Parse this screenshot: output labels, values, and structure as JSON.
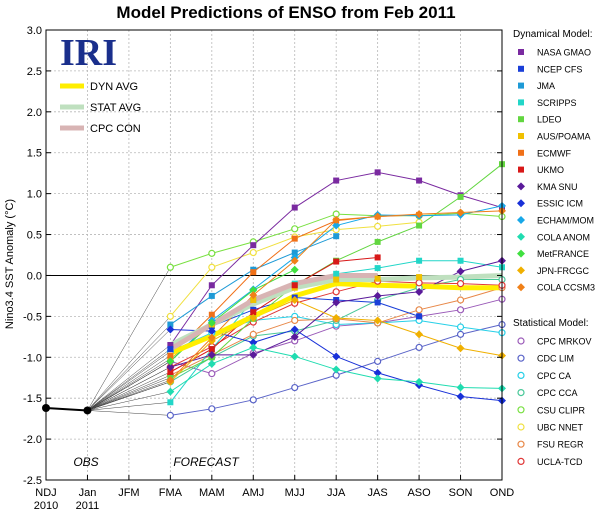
{
  "chart_data": {
    "type": "line",
    "title": "Model Predictions of ENSO from Feb 2011",
    "ylabel": "Nino3.4 SST Anomaly (°C)",
    "ylim": [
      -2.5,
      3.0
    ],
    "yticks": [
      "3.0",
      "2.5",
      "2.0",
      "1.5",
      "1.0",
      "0.5",
      "0.0",
      "-0.5",
      "-1.0",
      "-1.5",
      "-2.0",
      "-2.5"
    ],
    "categories": [
      "NDJ",
      "Jan",
      "JFM",
      "FMA",
      "MAM",
      "AMJ",
      "MJJ",
      "JJA",
      "JAS",
      "ASO",
      "SON",
      "OND"
    ],
    "year_labels": {
      "NDJ": "2010",
      "Jan": "2011"
    },
    "grid": true,
    "logo": "IRI",
    "region_labels": {
      "obs": "OBS",
      "forecast": "FORECAST"
    },
    "observed": {
      "x": [
        "NDJ",
        "Jan"
      ],
      "values": [
        -1.62,
        -1.65
      ]
    },
    "averages": [
      {
        "name": "DYN AVG",
        "color": "#ffee00",
        "values": [
          -0.95,
          -0.74,
          -0.5,
          -0.25,
          -0.1,
          -0.12,
          -0.13,
          -0.15,
          -0.15
        ]
      },
      {
        "name": "STAT AVG",
        "color": "#bfe0bf",
        "values": [
          -0.85,
          -0.6,
          -0.35,
          -0.15,
          -0.05,
          -0.05,
          -0.03,
          -0.02,
          0.0
        ]
      },
      {
        "name": "CPC CON",
        "color": "#d8b4b4",
        "values": [
          -0.9,
          -0.6,
          -0.3,
          -0.1,
          0.0,
          0.0,
          null,
          null,
          null
        ]
      }
    ],
    "legend_dynamical_title": "Dynamical Model:",
    "legend_statistical_title": "Statistical Model:",
    "dynamical": [
      {
        "name": "NASA GMAO",
        "color": "#7a2aa0",
        "marker": "square",
        "values": [
          -0.85,
          -0.12,
          0.37,
          0.83,
          1.16,
          1.26,
          1.16,
          0.98,
          0.83
        ]
      },
      {
        "name": "NCEP CFS",
        "color": "#1a3fd8",
        "marker": "square",
        "values": [
          -0.9,
          -0.62,
          -0.42,
          -0.27,
          -0.3,
          -0.33,
          -0.5,
          null,
          null
        ]
      },
      {
        "name": "JMA",
        "color": "#1e9ad6",
        "marker": "square",
        "values": [
          -0.6,
          -0.25,
          0.07,
          0.28,
          0.48,
          null,
          null,
          null,
          null
        ]
      },
      {
        "name": "SCRIPPS",
        "color": "#22d6c8",
        "marker": "square",
        "values": [
          -1.55,
          -0.9,
          -0.3,
          -0.1,
          0.02,
          0.09,
          0.18,
          0.18,
          0.1
        ]
      },
      {
        "name": "LDEO",
        "color": "#62d640",
        "marker": "square",
        "values": [
          -1.25,
          -1.0,
          -0.53,
          -0.12,
          0.18,
          0.41,
          0.61,
          0.96,
          1.36
        ]
      },
      {
        "name": "AUS/POAMA",
        "color": "#f0c000",
        "marker": "square",
        "values": [
          -1.02,
          -0.6,
          -0.3,
          -0.15,
          -0.05,
          -0.04,
          -0.02,
          null,
          null
        ]
      },
      {
        "name": "ECMWF",
        "color": "#f07018",
        "marker": "square",
        "values": [
          -0.98,
          -0.48,
          0.04,
          0.45,
          0.67,
          0.72,
          0.74,
          null,
          null
        ]
      },
      {
        "name": "UKMO",
        "color": "#d81818",
        "marker": "square",
        "values": [
          -1.18,
          -0.9,
          -0.45,
          -0.12,
          0.17,
          0.22,
          null,
          null,
          null
        ]
      },
      {
        "name": "KMA SNU",
        "color": "#5a1a9a",
        "marker": "diamond",
        "values": [
          -1.12,
          -0.97,
          -0.97,
          -0.75,
          -0.33,
          -0.25,
          -0.2,
          0.05,
          0.18
        ]
      },
      {
        "name": "ESSIC ICM",
        "color": "#1830d8",
        "marker": "diamond",
        "values": [
          -0.66,
          -0.68,
          -0.82,
          -0.66,
          -0.99,
          -1.19,
          -1.34,
          -1.48,
          -1.53
        ]
      },
      {
        "name": "ECHAM/MOM",
        "color": "#18a8e8",
        "marker": "diamond",
        "values": [
          -1.05,
          -0.55,
          -0.17,
          0.22,
          0.61,
          0.74,
          0.73,
          0.74,
          0.85
        ]
      },
      {
        "name": "COLA ANOM",
        "color": "#20dcb0",
        "marker": "diamond",
        "values": [
          -1.42,
          -1.08,
          -0.88,
          -0.99,
          -1.15,
          -1.26,
          -1.3,
          -1.37,
          -1.38
        ]
      },
      {
        "name": "MetFRANCE",
        "color": "#40e040",
        "marker": "diamond",
        "values": [
          -1.05,
          -0.58,
          -0.18,
          0.07,
          null,
          null,
          null,
          null,
          null
        ]
      },
      {
        "name": "JPN-FRCGC",
        "color": "#f0b000",
        "marker": "diamond",
        "values": [
          -1.3,
          -0.8,
          -0.52,
          -0.3,
          -0.52,
          -0.55,
          -0.72,
          -0.89,
          -0.98
        ]
      },
      {
        "name": "COLA CCSM3",
        "color": "#f08018",
        "marker": "diamond",
        "values": [
          -1.28,
          -0.76,
          -0.24,
          0.18,
          0.68,
          0.72,
          0.75,
          0.77,
          0.79
        ]
      }
    ],
    "statistical": [
      {
        "name": "CPC MRKOV",
        "color": "#9a5ab8",
        "marker": "circle",
        "values": [
          -1.05,
          -1.2,
          -0.95,
          -0.8,
          -0.62,
          -0.58,
          -0.5,
          -0.42,
          -0.29
        ]
      },
      {
        "name": "CDC LIM",
        "color": "#5a64c8",
        "marker": "circle",
        "values": [
          -1.71,
          -1.63,
          -1.52,
          -1.37,
          -1.22,
          -1.05,
          -0.88,
          -0.72,
          -0.6
        ]
      },
      {
        "name": "CPC CA",
        "color": "#28d0e8",
        "marker": "circle",
        "values": [
          -0.93,
          -0.7,
          -0.55,
          -0.5,
          -0.6,
          -0.58,
          -0.55,
          -0.63,
          -0.7
        ]
      },
      {
        "name": "CPC CCA",
        "color": "#48c898",
        "marker": "circle",
        "values": [
          -1.3,
          -1.0,
          -0.74,
          -0.68,
          -0.55,
          -0.3,
          -0.15,
          -0.05,
          -0.05
        ]
      },
      {
        "name": "CSU CLIPR",
        "color": "#78e040",
        "marker": "circle",
        "values": [
          0.1,
          0.27,
          0.41,
          0.57,
          0.75,
          0.73,
          0.73,
          0.76,
          0.72
        ]
      },
      {
        "name": "UBC NNET",
        "color": "#f0e040",
        "marker": "circle",
        "values": [
          -0.5,
          0.1,
          0.28,
          0.47,
          0.56,
          0.6,
          0.65,
          null,
          null
        ]
      },
      {
        "name": "FSU REGR",
        "color": "#e88848",
        "marker": "circle",
        "values": [
          -1.22,
          -0.97,
          -0.72,
          -0.55,
          -0.53,
          -0.58,
          -0.42,
          -0.3,
          -0.15
        ]
      },
      {
        "name": "UCLA-TCD",
        "color": "#e03838",
        "marker": "circle",
        "values": [
          -1.12,
          -0.87,
          -0.57,
          -0.34,
          -0.2,
          -0.07,
          -0.09,
          -0.1,
          -0.12
        ]
      }
    ]
  }
}
